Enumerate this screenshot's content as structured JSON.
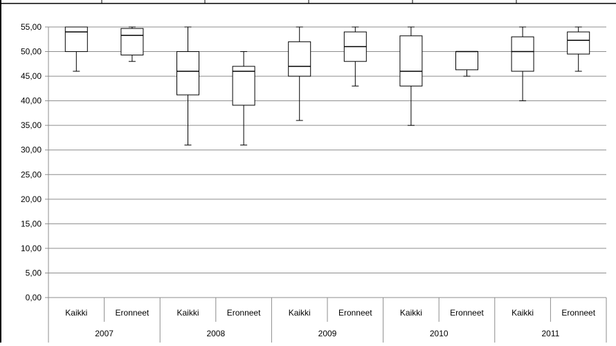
{
  "chart_data": {
    "type": "boxplot",
    "title": "",
    "xlabel": "",
    "ylabel": "",
    "ylim": [
      0,
      55
    ],
    "y_ticks": [
      "0,00",
      "5,00",
      "10,00",
      "15,00",
      "20,00",
      "25,00",
      "30,00",
      "35,00",
      "40,00",
      "45,00",
      "50,00",
      "55,00"
    ],
    "grid": true,
    "legend": "none",
    "groups": [
      {
        "year": "2007",
        "boxes": [
          {
            "category": "Kaikki",
            "min": 46,
            "q1": 50,
            "median": 54,
            "q3": 55,
            "max": 55
          },
          {
            "category": "Eronneet",
            "min": 48,
            "q1": 49.3,
            "median": 53.3,
            "q3": 54.7,
            "max": 55
          }
        ]
      },
      {
        "year": "2008",
        "boxes": [
          {
            "category": "Kaikki",
            "min": 31,
            "q1": 41.2,
            "median": 46,
            "q3": 50,
            "max": 55
          },
          {
            "category": "Eronneet",
            "min": 31,
            "q1": 39.1,
            "median": 46,
            "q3": 47,
            "max": 50
          }
        ]
      },
      {
        "year": "2009",
        "boxes": [
          {
            "category": "Kaikki",
            "min": 36,
            "q1": 45,
            "median": 47,
            "q3": 52,
            "max": 55
          },
          {
            "category": "Eronneet",
            "min": 43,
            "q1": 48,
            "median": 51,
            "q3": 54,
            "max": 55
          }
        ]
      },
      {
        "year": "2010",
        "boxes": [
          {
            "category": "Kaikki",
            "min": 35,
            "q1": 43,
            "median": 46,
            "q3": 53.2,
            "max": 55
          },
          {
            "category": "Eronneet",
            "min": 45,
            "q1": 46.3,
            "median": 50,
            "q3": 50,
            "max": 50
          }
        ]
      },
      {
        "year": "2011",
        "boxes": [
          {
            "category": "Kaikki",
            "min": 40,
            "q1": 46,
            "median": 50,
            "q3": 53,
            "max": 55
          },
          {
            "category": "Eronneet",
            "min": 46,
            "q1": 49.5,
            "median": 52.3,
            "q3": 54,
            "max": 55
          }
        ]
      }
    ]
  }
}
